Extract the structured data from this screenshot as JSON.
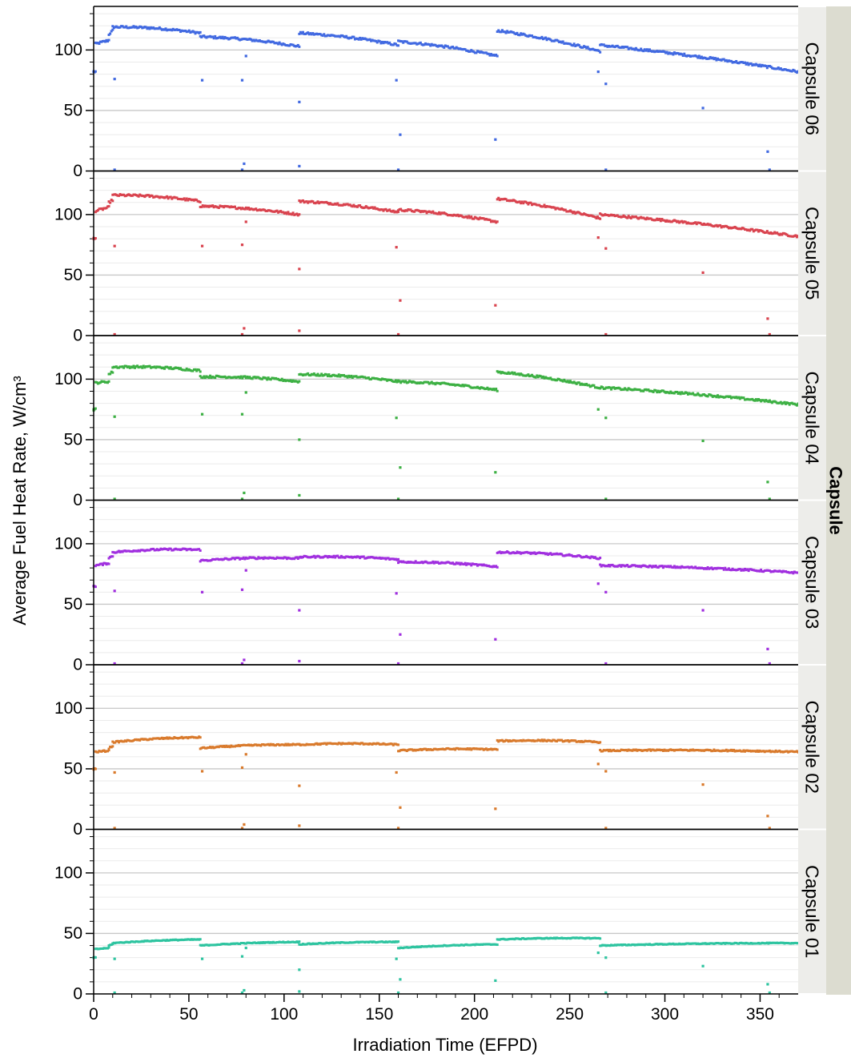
{
  "chart_data": {
    "type": "scatter",
    "xlabel": "Irradiation Time (EFPD)",
    "ylabel": "Average Fuel Heat Rate, W/cm³",
    "facet_title": "Capsule",
    "xlim": [
      0,
      370
    ],
    "ylim": [
      0,
      136
    ],
    "x_ticks": [
      0,
      50,
      100,
      150,
      200,
      250,
      300,
      350
    ],
    "y_ticks": [
      0,
      50,
      100
    ],
    "grid": true,
    "panels": [
      {
        "name": "Capsule 06",
        "color": "#4169e1",
        "base": 116,
        "cycles": [
          {
            "x0": 0,
            "x1": 1,
            "y0": 82,
            "y1": 82
          },
          {
            "x0": 1,
            "x1": 8,
            "y0": 105,
            "y1": 108
          },
          {
            "x0": 8,
            "x1": 10,
            "y0": 113,
            "y1": 116
          },
          {
            "x0": 10,
            "x1": 56,
            "y0": 119,
            "y1": 114
          },
          {
            "x0": 56,
            "x1": 108,
            "y0": 111,
            "y1": 103
          },
          {
            "x0": 108,
            "x1": 160,
            "y0": 114,
            "y1": 104
          },
          {
            "x0": 160,
            "x1": 212,
            "y0": 107,
            "y1": 95
          },
          {
            "x0": 212,
            "x1": 266,
            "y0": 116,
            "y1": 99
          },
          {
            "x0": 266,
            "x1": 370,
            "y0": 104,
            "y1": 82
          }
        ],
        "outliers": [
          {
            "x": 0,
            "y": 82
          },
          {
            "x": 11,
            "y": 76
          },
          {
            "x": 57,
            "y": 75
          },
          {
            "x": 78,
            "y": 75
          },
          {
            "x": 80,
            "y": 95
          },
          {
            "x": 108,
            "y": 57
          },
          {
            "x": 159,
            "y": 75
          },
          {
            "x": 161,
            "y": 30
          },
          {
            "x": 211,
            "y": 26
          },
          {
            "x": 265,
            "y": 82
          },
          {
            "x": 269,
            "y": 72
          },
          {
            "x": 320,
            "y": 52
          },
          {
            "x": 354,
            "y": 16
          },
          {
            "x": 79,
            "y": 6
          },
          {
            "x": 108,
            "y": 4
          },
          {
            "x": 11,
            "y": 0
          },
          {
            "x": 78,
            "y": 0
          },
          {
            "x": 160,
            "y": 0
          },
          {
            "x": 269,
            "y": 0
          },
          {
            "x": 355,
            "y": 0
          }
        ]
      },
      {
        "name": "Capsule 05",
        "color": "#d9434e",
        "base": 113,
        "cycles": [
          {
            "x0": 0,
            "x1": 1,
            "y0": 80,
            "y1": 80
          },
          {
            "x0": 1,
            "x1": 8,
            "y0": 103,
            "y1": 106
          },
          {
            "x0": 8,
            "x1": 10,
            "y0": 110,
            "y1": 112
          },
          {
            "x0": 10,
            "x1": 56,
            "y0": 116,
            "y1": 111
          },
          {
            "x0": 56,
            "x1": 108,
            "y0": 107,
            "y1": 100
          },
          {
            "x0": 108,
            "x1": 160,
            "y0": 111,
            "y1": 102
          },
          {
            "x0": 160,
            "x1": 212,
            "y0": 104,
            "y1": 94
          },
          {
            "x0": 212,
            "x1": 266,
            "y0": 113,
            "y1": 97
          },
          {
            "x0": 266,
            "x1": 370,
            "y0": 100,
            "y1": 82
          }
        ],
        "outliers": [
          {
            "x": 0,
            "y": 80
          },
          {
            "x": 11,
            "y": 74
          },
          {
            "x": 57,
            "y": 74
          },
          {
            "x": 78,
            "y": 75
          },
          {
            "x": 80,
            "y": 94
          },
          {
            "x": 108,
            "y": 55
          },
          {
            "x": 159,
            "y": 73
          },
          {
            "x": 161,
            "y": 29
          },
          {
            "x": 211,
            "y": 25
          },
          {
            "x": 265,
            "y": 81
          },
          {
            "x": 269,
            "y": 72
          },
          {
            "x": 320,
            "y": 52
          },
          {
            "x": 354,
            "y": 14
          },
          {
            "x": 79,
            "y": 6
          },
          {
            "x": 108,
            "y": 4
          },
          {
            "x": 11,
            "y": 0
          },
          {
            "x": 78,
            "y": 0
          },
          {
            "x": 160,
            "y": 0
          },
          {
            "x": 269,
            "y": 0
          },
          {
            "x": 355,
            "y": 0
          }
        ]
      },
      {
        "name": "Capsule 04",
        "color": "#3cb043",
        "base": 108,
        "cycles": [
          {
            "x0": 0,
            "x1": 1,
            "y0": 75,
            "y1": 75
          },
          {
            "x0": 1,
            "x1": 8,
            "y0": 97,
            "y1": 98
          },
          {
            "x0": 8,
            "x1": 10,
            "y0": 104,
            "y1": 106
          },
          {
            "x0": 10,
            "x1": 56,
            "y0": 110,
            "y1": 107
          },
          {
            "x0": 56,
            "x1": 108,
            "y0": 102,
            "y1": 98
          },
          {
            "x0": 108,
            "x1": 160,
            "y0": 104,
            "y1": 98
          },
          {
            "x0": 160,
            "x1": 212,
            "y0": 98,
            "y1": 91
          },
          {
            "x0": 212,
            "x1": 266,
            "y0": 106,
            "y1": 93
          },
          {
            "x0": 266,
            "x1": 370,
            "y0": 93,
            "y1": 79
          }
        ],
        "outliers": [
          {
            "x": 0,
            "y": 75
          },
          {
            "x": 11,
            "y": 69
          },
          {
            "x": 57,
            "y": 71
          },
          {
            "x": 78,
            "y": 71
          },
          {
            "x": 80,
            "y": 89
          },
          {
            "x": 108,
            "y": 50
          },
          {
            "x": 159,
            "y": 68
          },
          {
            "x": 161,
            "y": 27
          },
          {
            "x": 211,
            "y": 23
          },
          {
            "x": 265,
            "y": 75
          },
          {
            "x": 269,
            "y": 68
          },
          {
            "x": 320,
            "y": 49
          },
          {
            "x": 354,
            "y": 15
          },
          {
            "x": 79,
            "y": 6
          },
          {
            "x": 108,
            "y": 4
          },
          {
            "x": 11,
            "y": 0
          },
          {
            "x": 78,
            "y": 0
          },
          {
            "x": 160,
            "y": 0
          },
          {
            "x": 269,
            "y": 0
          },
          {
            "x": 355,
            "y": 0
          }
        ]
      },
      {
        "name": "Capsule 03",
        "color": "#a02fdf",
        "base": 92,
        "cycles": [
          {
            "x0": 0,
            "x1": 1,
            "y0": 65,
            "y1": 65
          },
          {
            "x0": 1,
            "x1": 8,
            "y0": 82,
            "y1": 84
          },
          {
            "x0": 8,
            "x1": 10,
            "y0": 88,
            "y1": 90
          },
          {
            "x0": 10,
            "x1": 56,
            "y0": 93,
            "y1": 95
          },
          {
            "x0": 56,
            "x1": 108,
            "y0": 86,
            "y1": 88
          },
          {
            "x0": 108,
            "x1": 160,
            "y0": 89,
            "y1": 87
          },
          {
            "x0": 160,
            "x1": 212,
            "y0": 85,
            "y1": 81
          },
          {
            "x0": 212,
            "x1": 266,
            "y0": 93,
            "y1": 88
          },
          {
            "x0": 266,
            "x1": 370,
            "y0": 82,
            "y1": 76
          }
        ],
        "outliers": [
          {
            "x": 0,
            "y": 65
          },
          {
            "x": 11,
            "y": 61
          },
          {
            "x": 57,
            "y": 60
          },
          {
            "x": 78,
            "y": 62
          },
          {
            "x": 80,
            "y": 78
          },
          {
            "x": 108,
            "y": 45
          },
          {
            "x": 159,
            "y": 59
          },
          {
            "x": 161,
            "y": 25
          },
          {
            "x": 211,
            "y": 21
          },
          {
            "x": 265,
            "y": 67
          },
          {
            "x": 269,
            "y": 60
          },
          {
            "x": 320,
            "y": 45
          },
          {
            "x": 354,
            "y": 13
          },
          {
            "x": 79,
            "y": 4
          },
          {
            "x": 108,
            "y": 3
          },
          {
            "x": 11,
            "y": 0
          },
          {
            "x": 78,
            "y": 0
          },
          {
            "x": 160,
            "y": 0
          },
          {
            "x": 269,
            "y": 0
          },
          {
            "x": 355,
            "y": 0
          }
        ]
      },
      {
        "name": "Capsule 02",
        "color": "#d97a2c",
        "base": 72,
        "cycles": [
          {
            "x0": 0,
            "x1": 1,
            "y0": 50,
            "y1": 50
          },
          {
            "x0": 1,
            "x1": 8,
            "y0": 64,
            "y1": 65
          },
          {
            "x0": 8,
            "x1": 10,
            "y0": 67,
            "y1": 69
          },
          {
            "x0": 10,
            "x1": 56,
            "y0": 72,
            "y1": 76
          },
          {
            "x0": 56,
            "x1": 108,
            "y0": 67,
            "y1": 70
          },
          {
            "x0": 108,
            "x1": 160,
            "y0": 70,
            "y1": 70
          },
          {
            "x0": 160,
            "x1": 212,
            "y0": 65,
            "y1": 66
          },
          {
            "x0": 212,
            "x1": 266,
            "y0": 73,
            "y1": 72
          },
          {
            "x0": 266,
            "x1": 370,
            "y0": 65,
            "y1": 64
          }
        ],
        "outliers": [
          {
            "x": 0,
            "y": 50
          },
          {
            "x": 11,
            "y": 47
          },
          {
            "x": 57,
            "y": 48
          },
          {
            "x": 78,
            "y": 51
          },
          {
            "x": 80,
            "y": 62
          },
          {
            "x": 108,
            "y": 36
          },
          {
            "x": 159,
            "y": 47
          },
          {
            "x": 161,
            "y": 18
          },
          {
            "x": 211,
            "y": 17
          },
          {
            "x": 265,
            "y": 54
          },
          {
            "x": 269,
            "y": 48
          },
          {
            "x": 320,
            "y": 37
          },
          {
            "x": 354,
            "y": 11
          },
          {
            "x": 79,
            "y": 4
          },
          {
            "x": 108,
            "y": 3
          },
          {
            "x": 11,
            "y": 0
          },
          {
            "x": 78,
            "y": 0
          },
          {
            "x": 160,
            "y": 0
          },
          {
            "x": 269,
            "y": 0
          },
          {
            "x": 355,
            "y": 0
          }
        ]
      },
      {
        "name": "Capsule 01",
        "color": "#2ec4a0",
        "base": 43,
        "cycles": [
          {
            "x0": 0,
            "x1": 1,
            "y0": 30,
            "y1": 30
          },
          {
            "x0": 1,
            "x1": 8,
            "y0": 37,
            "y1": 38
          },
          {
            "x0": 8,
            "x1": 10,
            "y0": 40,
            "y1": 41
          },
          {
            "x0": 10,
            "x1": 56,
            "y0": 42,
            "y1": 45
          },
          {
            "x0": 56,
            "x1": 108,
            "y0": 40,
            "y1": 43
          },
          {
            "x0": 108,
            "x1": 160,
            "y0": 41,
            "y1": 43
          },
          {
            "x0": 160,
            "x1": 212,
            "y0": 38,
            "y1": 41
          },
          {
            "x0": 212,
            "x1": 266,
            "y0": 45,
            "y1": 46
          },
          {
            "x0": 266,
            "x1": 370,
            "y0": 40,
            "y1": 42
          }
        ],
        "outliers": [
          {
            "x": 0,
            "y": 30
          },
          {
            "x": 11,
            "y": 29
          },
          {
            "x": 57,
            "y": 29
          },
          {
            "x": 78,
            "y": 31
          },
          {
            "x": 80,
            "y": 38
          },
          {
            "x": 108,
            "y": 20
          },
          {
            "x": 159,
            "y": 29
          },
          {
            "x": 161,
            "y": 12
          },
          {
            "x": 211,
            "y": 11
          },
          {
            "x": 265,
            "y": 34
          },
          {
            "x": 269,
            "y": 30
          },
          {
            "x": 320,
            "y": 23
          },
          {
            "x": 354,
            "y": 8
          },
          {
            "x": 79,
            "y": 3
          },
          {
            "x": 108,
            "y": 2
          },
          {
            "x": 11,
            "y": 0
          },
          {
            "x": 78,
            "y": 0
          },
          {
            "x": 160,
            "y": 0
          },
          {
            "x": 269,
            "y": 0
          },
          {
            "x": 355,
            "y": 0
          }
        ]
      }
    ]
  }
}
